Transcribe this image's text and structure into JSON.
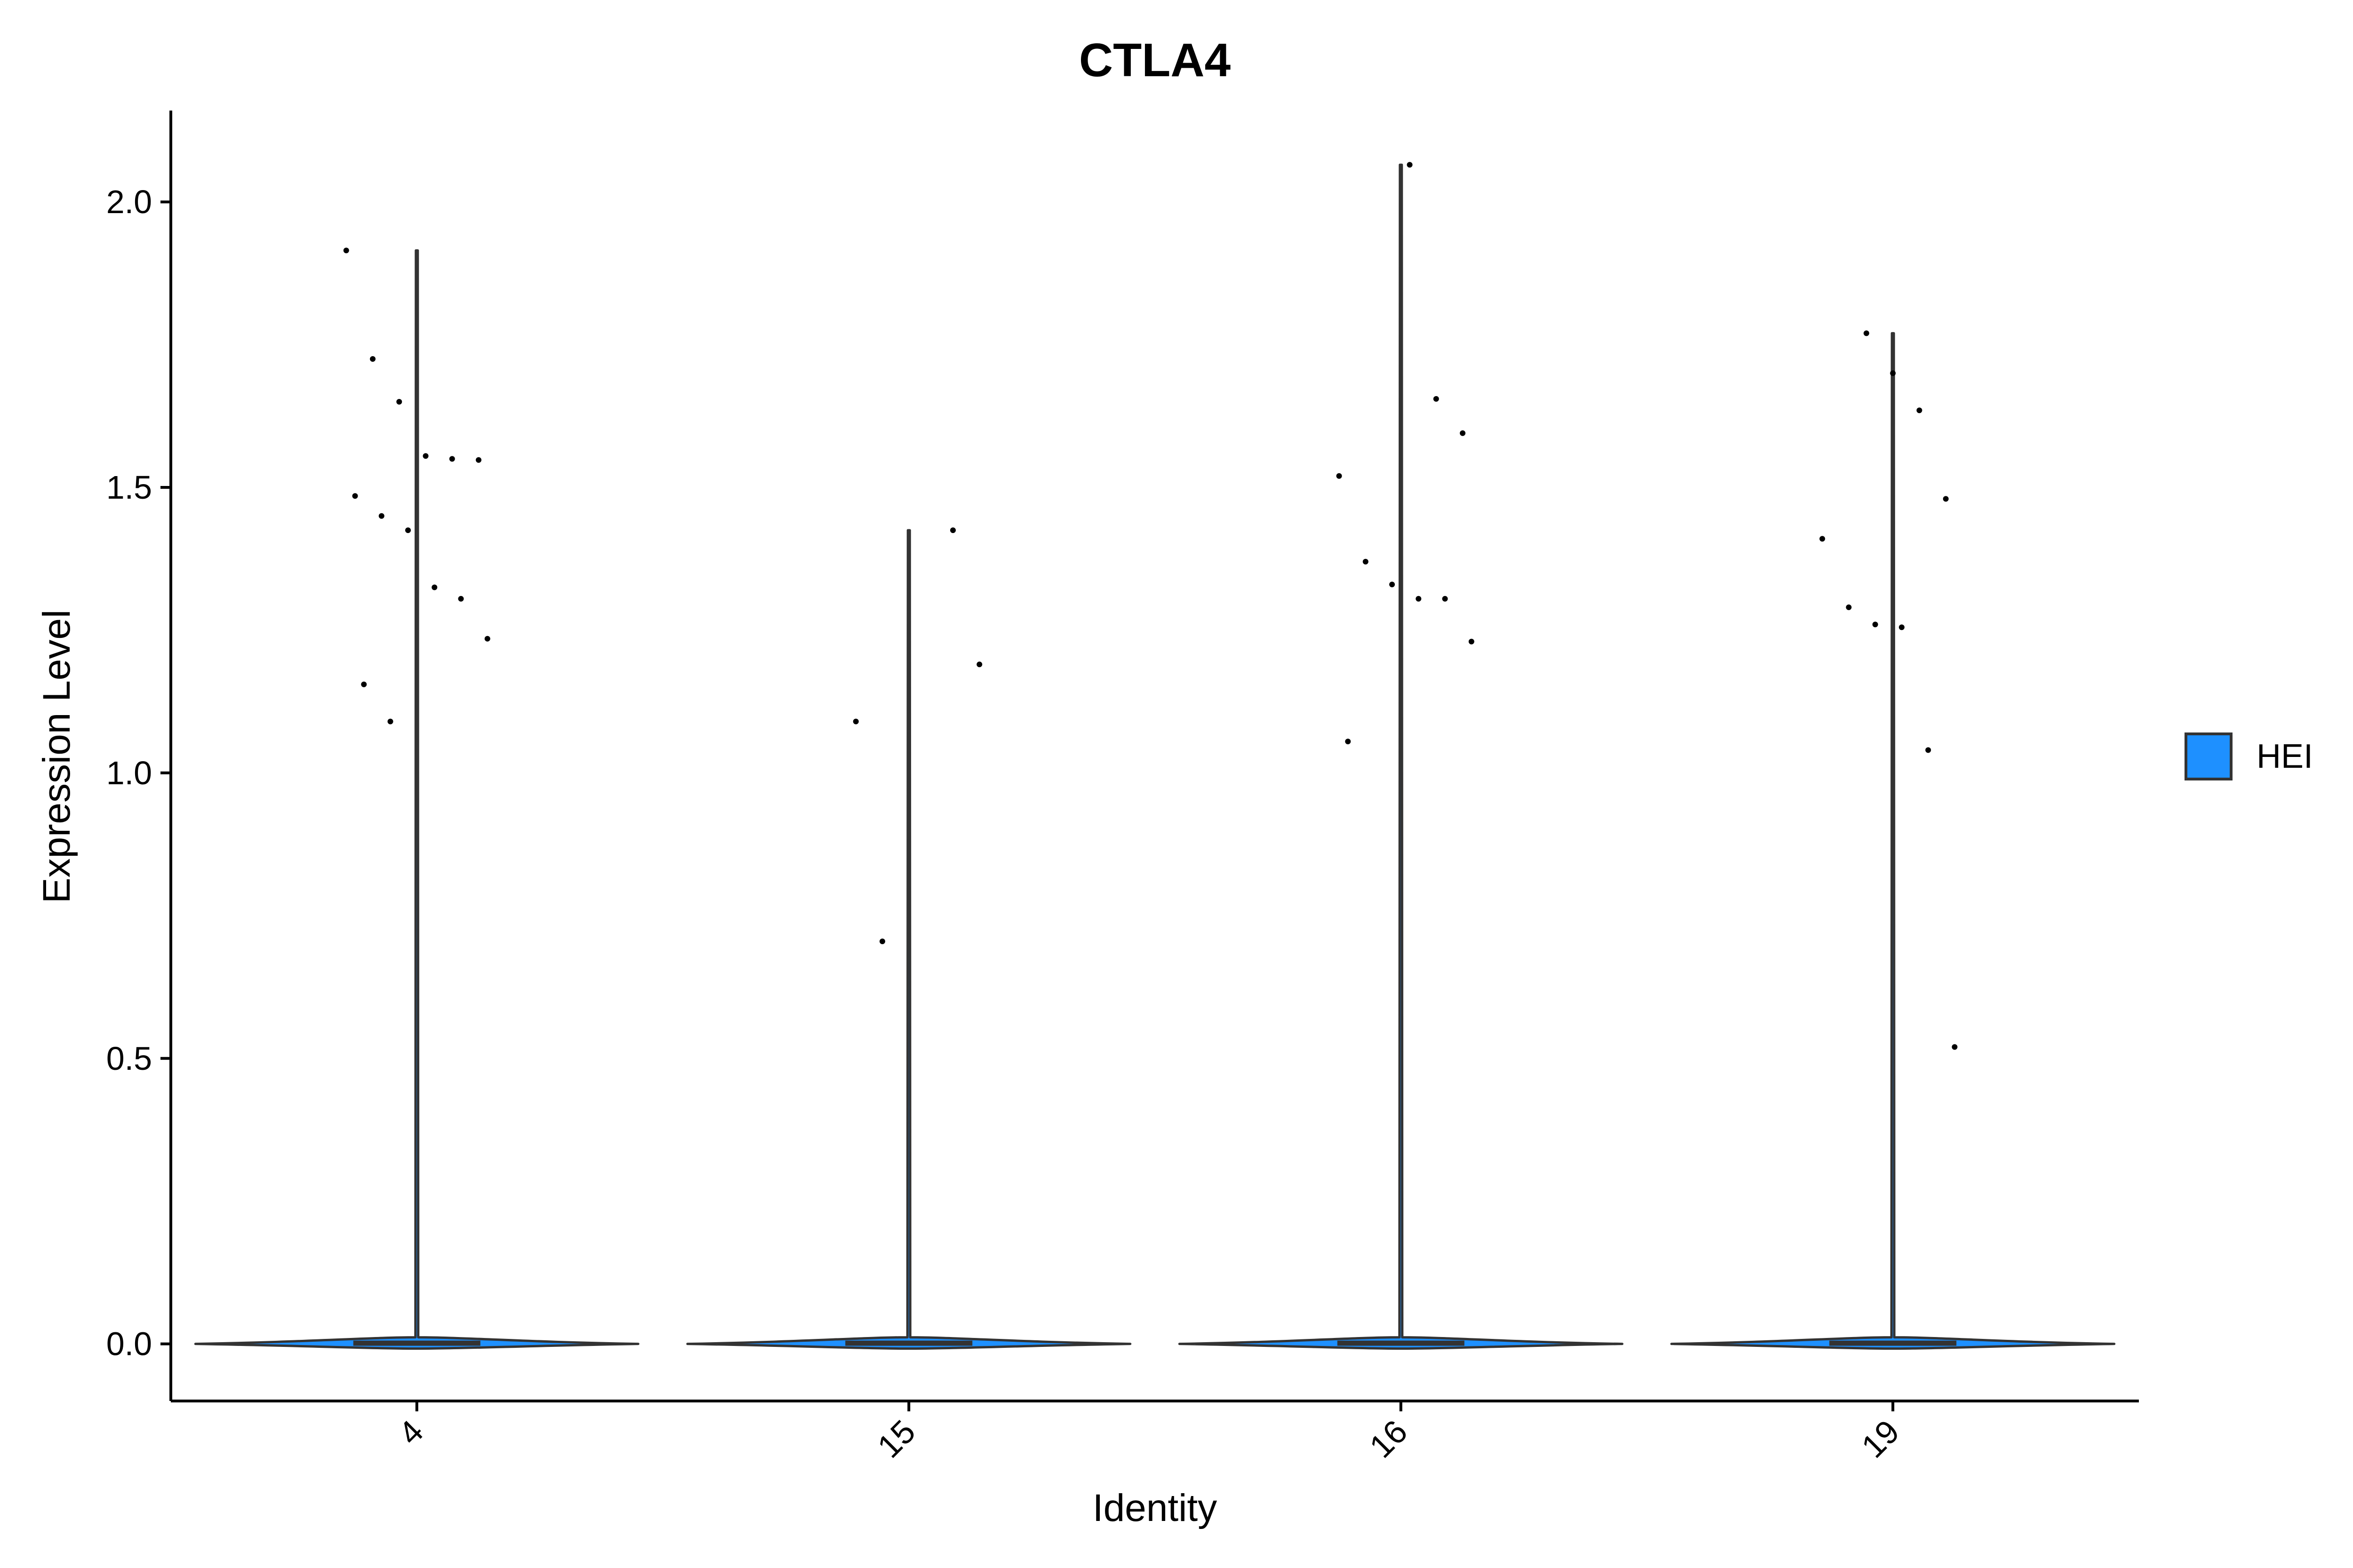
{
  "chart_data": {
    "type": "violin",
    "title": "CTLA4",
    "xlabel": "Identity",
    "ylabel": "Expression Level",
    "ylim": [
      -0.1,
      2.16
    ],
    "yticks": [
      0.0,
      0.5,
      1.0,
      1.5,
      2.0
    ],
    "ytick_labels": [
      "0.0",
      "0.5",
      "1.0",
      "1.5",
      "2.0"
    ],
    "xtick_rotation": 45,
    "grid": false,
    "legend": {
      "placement": "right",
      "entries": [
        {
          "label": "HEI",
          "color": "#1E90FF"
        }
      ]
    },
    "categories": [
      "4",
      "15",
      "16",
      "19"
    ],
    "violin_max": [
      1.915,
      1.425,
      2.065,
      1.77
    ],
    "points": [
      {
        "group": "4",
        "values": [
          1.915,
          1.725,
          1.65,
          1.555,
          1.55,
          1.548,
          1.485,
          1.45,
          1.425,
          1.325,
          1.305,
          1.235,
          1.155,
          1.09
        ]
      },
      {
        "group": "15",
        "values": [
          1.425,
          1.19,
          1.09,
          0.705
        ]
      },
      {
        "group": "16",
        "values": [
          2.065,
          1.655,
          1.595,
          1.52,
          1.37,
          1.33,
          1.305,
          1.305,
          1.23,
          1.055
        ]
      },
      {
        "group": "19",
        "values": [
          1.77,
          1.7,
          1.635,
          1.48,
          1.41,
          1.29,
          1.26,
          1.255,
          1.04,
          0.52
        ]
      }
    ],
    "colors": {
      "violin_fill": "#1E90FF",
      "violin_stroke": "#333333",
      "points": "#000000",
      "axis": "#000000"
    }
  }
}
